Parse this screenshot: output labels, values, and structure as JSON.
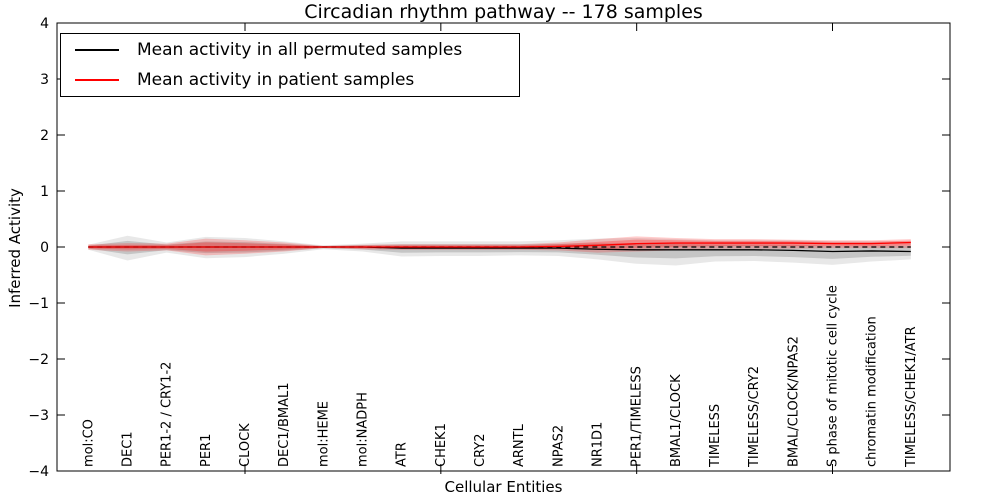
{
  "figure": {
    "title": "Circadian rhythm pathway -- 178 samples",
    "xlabel": "Cellular Entities",
    "ylabel": "Inferred Activity"
  },
  "legend": {
    "items": [
      {
        "label": "Mean activity in all permuted samples",
        "color": "#000000"
      },
      {
        "label": "Mean activity in patient samples",
        "color": "#ff0000"
      }
    ]
  },
  "axes": {
    "ylim": [
      -4,
      4
    ],
    "y_ticks": [
      {
        "value": 4,
        "label": "4"
      },
      {
        "value": 3,
        "label": "3"
      },
      {
        "value": 2,
        "label": "2"
      },
      {
        "value": 1,
        "label": "1"
      },
      {
        "value": 0,
        "label": "0"
      },
      {
        "value": -1,
        "label": "−1"
      },
      {
        "value": -2,
        "label": "−2"
      },
      {
        "value": -3,
        "label": "−3"
      },
      {
        "value": -4,
        "label": "−4"
      }
    ],
    "x_tick_values": [
      5,
      10,
      15,
      20
    ]
  },
  "chart_data": {
    "type": "line",
    "title": "Circadian rhythm pathway -- 178 samples",
    "xlabel": "Cellular Entities",
    "ylabel": "Inferred Activity",
    "ylim": [
      -4,
      4
    ],
    "grid": false,
    "legend_position": "upper left",
    "categories": [
      "mol:CO",
      "DEC1",
      "PER1-2 / CRY1-2",
      "PER1",
      "CLOCK",
      "DEC1/BMAL1",
      "mol:HEME",
      "mol:NADPH",
      "ATR",
      "CHEK1",
      "CRY2",
      "ARNTL",
      "NPAS2",
      "NR1D1",
      "PER1/TIMELESS",
      "BMAL1/CLOCK",
      "TIMELESS",
      "TIMELESS/CRY2",
      "BMAL/CLOCK/NPAS2",
      "S phase of mitotic cell cycle",
      "chromatin modification",
      "TIMELESS/CHEK1/ATR"
    ],
    "series": [
      {
        "name": "Mean activity in all permuted samples",
        "color": "#000000",
        "style": "solid",
        "values": [
          0,
          0,
          0,
          0,
          0,
          0,
          0,
          0,
          -0.02,
          -0.02,
          -0.02,
          -0.02,
          -0.02,
          -0.04,
          -0.05,
          -0.05,
          -0.05,
          -0.05,
          -0.06,
          -0.08,
          -0.07,
          -0.08
        ]
      },
      {
        "name": "Mean activity in patient samples",
        "color": "#ff0000",
        "style": "solid",
        "values": [
          0,
          0,
          0,
          0,
          0,
          0,
          0,
          0,
          0,
          0,
          0,
          0,
          0.01,
          0.03,
          0.06,
          0.07,
          0.07,
          0.07,
          0.07,
          0.06,
          0.06,
          0.08
        ]
      },
      {
        "name": "zero reference",
        "color": "#000000",
        "style": "dashed",
        "values": [
          0,
          0,
          0,
          0,
          0,
          0,
          0,
          0,
          0,
          0,
          0,
          0,
          0,
          0,
          0,
          0,
          0,
          0,
          0,
          0,
          0,
          0
        ]
      }
    ],
    "bands": [
      {
        "name": "permuted samples spread",
        "color": "#000000",
        "alpha": 0.09,
        "upper": [
          0.04,
          0.2,
          0.08,
          0.18,
          0.16,
          0.1,
          0.03,
          0.06,
          0.1,
          0.1,
          0.1,
          0.1,
          0.12,
          0.15,
          0.16,
          0.14,
          0.12,
          0.12,
          0.12,
          0.1,
          0.1,
          0.1
        ],
        "lower": [
          -0.05,
          -0.24,
          -0.1,
          -0.2,
          -0.18,
          -0.12,
          -0.04,
          -0.08,
          -0.17,
          -0.16,
          -0.16,
          -0.15,
          -0.16,
          -0.22,
          -0.3,
          -0.33,
          -0.26,
          -0.25,
          -0.28,
          -0.32,
          -0.26,
          -0.22
        ]
      },
      {
        "name": "patient samples spread",
        "color": "#ff0000",
        "alpha": 0.2,
        "upper": [
          0.05,
          0.07,
          0.06,
          0.15,
          0.12,
          0.08,
          0.02,
          0.04,
          0.05,
          0.05,
          0.05,
          0.05,
          0.08,
          0.14,
          0.19,
          0.16,
          0.14,
          0.14,
          0.13,
          0.12,
          0.12,
          0.14
        ],
        "lower": [
          -0.05,
          -0.08,
          -0.06,
          -0.15,
          -0.12,
          -0.08,
          -0.02,
          -0.04,
          -0.05,
          -0.05,
          -0.05,
          -0.05,
          -0.06,
          -0.1,
          -0.08,
          -0.06,
          -0.03,
          -0.03,
          -0.03,
          -0.02,
          -0.02,
          -0.02
        ]
      }
    ]
  }
}
